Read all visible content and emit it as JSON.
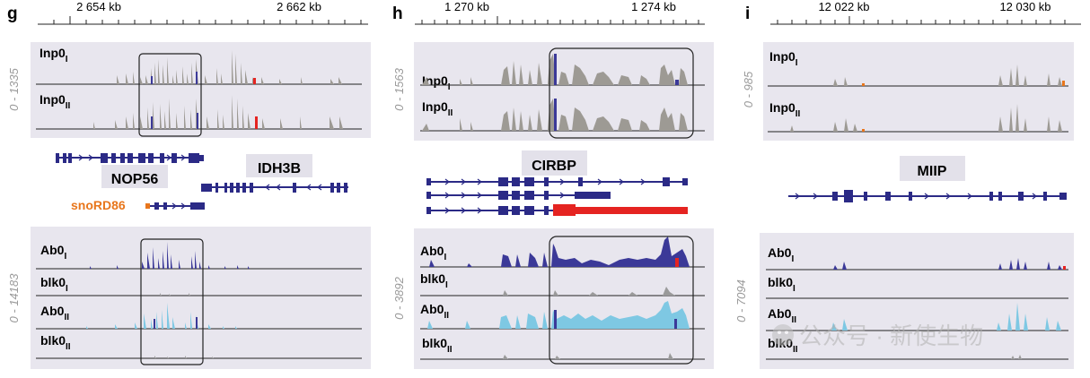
{
  "panels": [
    {
      "letter": "g",
      "ticks": [
        "2 654 kb",
        "2 662 kb"
      ],
      "input_range": "0 - 1335",
      "ab_range": "0 - 14183",
      "input_tracks": [
        {
          "base": "Inp0",
          "sub": "I"
        },
        {
          "base": "Inp0",
          "sub": "II"
        }
      ],
      "ab_tracks": [
        {
          "base": "Ab0",
          "sub": "I"
        },
        {
          "base": "blk0",
          "sub": "I"
        },
        {
          "base": "Ab0",
          "sub": "II"
        },
        {
          "base": "blk0",
          "sub": "II"
        }
      ],
      "genes": [
        "NOP56",
        "IDH3B"
      ],
      "snorna": "snoRD86"
    },
    {
      "letter": "h",
      "ticks": [
        "1 270 kb",
        "1 274 kb"
      ],
      "input_range": "0 - 1563",
      "ab_range": "0 - 3892",
      "input_tracks": [
        {
          "base": "Inp0",
          "sub": "I"
        },
        {
          "base": "Inp0",
          "sub": "II"
        }
      ],
      "ab_tracks": [
        {
          "base": "Ab0",
          "sub": "I"
        },
        {
          "base": "blk0",
          "sub": "I"
        },
        {
          "base": "Ab0",
          "sub": "II"
        },
        {
          "base": "blk0",
          "sub": "II"
        }
      ],
      "genes": [
        "CIRBP"
      ]
    },
    {
      "letter": "i",
      "ticks": [
        "12 022 kb",
        "12 030 kb"
      ],
      "input_range": "0 - 985",
      "ab_range": "0 - 7094",
      "input_tracks": [
        {
          "base": "Inp0",
          "sub": "I"
        },
        {
          "base": "Inp0",
          "sub": "II"
        }
      ],
      "ab_tracks": [
        {
          "base": "Ab0",
          "sub": "I"
        },
        {
          "base": "blk0",
          "sub": "I"
        },
        {
          "base": "Ab0",
          "sub": "II"
        },
        {
          "base": "blk0",
          "sub": "II"
        }
      ],
      "genes": [
        "MIIP"
      ]
    }
  ],
  "watermark": "公众号 · 新使生物",
  "colors": {
    "panel_bg": "#e8e6ee",
    "gene_box": "#e3e1ea",
    "input_signal": "#9d9a94",
    "ab_dark": "#3b3998",
    "ab_light": "#7ec8e3",
    "blank_signal": "#9a9a9a",
    "gene_model": "#2b2a86",
    "snorna": "#e8761c",
    "highlight_red": "#e52421",
    "range_label": "#9a9a9a"
  }
}
